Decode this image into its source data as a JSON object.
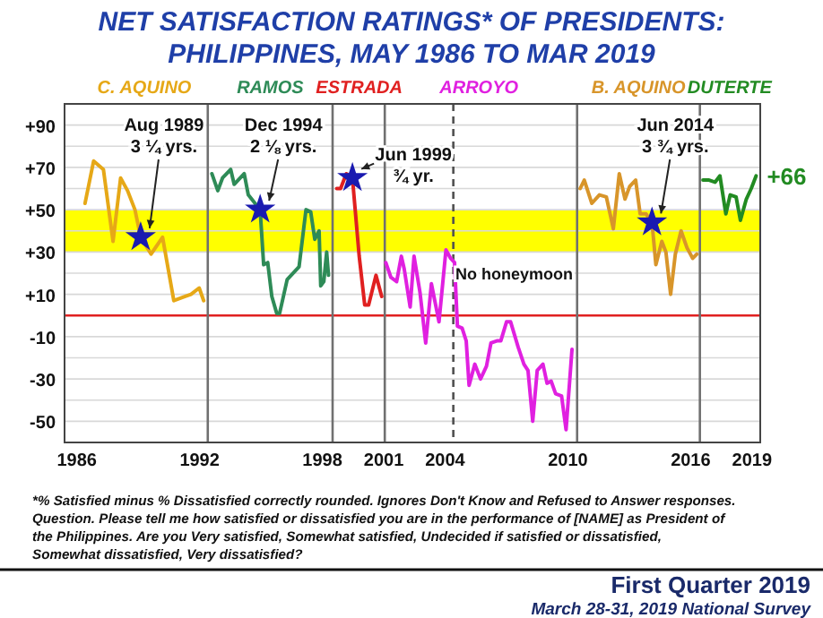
{
  "chart_data": {
    "type": "line",
    "title": "NET SATISFACTION RATINGS* OF PRESIDENTS:",
    "subtitle": "PHILIPPINES, MAY 1986 TO MAR 2019",
    "xlim": [
      1985.4,
      2019.4
    ],
    "xticks": [
      1986,
      1992,
      1998,
      2001,
      2004,
      2010,
      2016,
      2019
    ],
    "ylim": [
      -60,
      100
    ],
    "yticks": [
      {
        "value": 90,
        "label": "+90"
      },
      {
        "value": 80,
        "label": null
      },
      {
        "value": 70,
        "label": "+70"
      },
      {
        "value": 60,
        "label": null
      },
      {
        "value": 50,
        "label": "+50"
      },
      {
        "value": 40,
        "label": null
      },
      {
        "value": 30,
        "label": "+30"
      },
      {
        "value": 20,
        "label": null
      },
      {
        "value": 10,
        "label": "+10"
      },
      {
        "value": 0,
        "label": null
      },
      {
        "value": -10,
        "label": "-10"
      },
      {
        "value": -20,
        "label": null
      },
      {
        "value": -30,
        "label": "-30"
      },
      {
        "value": -40,
        "label": null
      },
      {
        "value": -50,
        "label": "-50"
      }
    ],
    "grid": "y",
    "bands": [
      {
        "axis": "y",
        "from": 30,
        "to": 50,
        "color": "#ffff00"
      }
    ],
    "ref_lines": [
      {
        "axis": "y",
        "value": 0,
        "color": "#e02020"
      },
      {
        "axis": "x",
        "value": 1992.4,
        "color": "#707070"
      },
      {
        "axis": "x",
        "value": 1998.5,
        "color": "#707070"
      },
      {
        "axis": "x",
        "value": 2001.05,
        "color": "#707070"
      },
      {
        "axis": "x",
        "value": 2004.4,
        "color": "#505050",
        "line_style": "dashed"
      },
      {
        "axis": "x",
        "value": 2010.45,
        "color": "#707070"
      },
      {
        "axis": "x",
        "value": 2016.45,
        "color": "#707070"
      }
    ],
    "series": [
      {
        "name": "C. AQUINO",
        "color": "#e6a817",
        "x": [
          1986.4,
          1986.82,
          1987.3,
          1987.77,
          1988.14,
          1988.48,
          1988.84,
          1989.12,
          1989.63,
          1990.19,
          1990.74,
          1991.3,
          1991.58,
          1991.98,
          1992.2
        ],
        "values": [
          53,
          73,
          69,
          35,
          65,
          59,
          50,
          37,
          29,
          37,
          7,
          9,
          10,
          13,
          7
        ]
      },
      {
        "name": "RAMOS",
        "color": "#2e8b57",
        "x": [
          1992.6,
          1992.89,
          1993.12,
          1993.52,
          1993.69,
          1994.18,
          1994.38,
          1994.96,
          1995.13,
          1995.33,
          1995.53,
          1995.77,
          1995.91,
          1996.28,
          1996.86,
          1997.2,
          1997.43,
          1997.63,
          1997.84,
          1997.92,
          1998.07,
          1998.21,
          1998.3
        ],
        "values": [
          67,
          59,
          65,
          69,
          62,
          67,
          57,
          50,
          24,
          25,
          9,
          1,
          1,
          17,
          23,
          50,
          49,
          36,
          40,
          14,
          16,
          30,
          19
        ]
      },
      {
        "name": "ESTRADA",
        "color": "#e02020",
        "x": [
          1998.7,
          1998.89,
          1999.17,
          1999.47,
          1999.8,
          2000.07,
          2000.26,
          2000.62,
          2000.9
        ],
        "values": [
          60,
          60,
          67,
          65,
          28,
          5,
          5,
          19,
          9
        ]
      },
      {
        "name": "ARROYO",
        "color": "#e020e0",
        "x": [
          2001.1,
          2001.35,
          2001.63,
          2001.86,
          2002.0,
          2002.29,
          2002.48,
          2002.77,
          2003.05,
          2003.33,
          2003.7,
          2004.04,
          2004.27,
          2004.46,
          2004.6,
          2004.83,
          2005.03,
          2005.17,
          2005.45,
          2005.73,
          2006.02,
          2006.24,
          2006.53,
          2006.72,
          2007.0,
          2007.2,
          2007.57,
          2007.85,
          2008.05,
          2008.28,
          2008.5,
          2008.78,
          2008.98,
          2009.18,
          2009.4,
          2009.69,
          2009.91,
          2010.2
        ],
        "values": [
          25,
          18,
          16,
          28,
          22,
          4,
          28,
          11,
          -13,
          15,
          -3,
          31,
          27,
          25,
          -5,
          -6,
          -12,
          -33,
          -23,
          -30,
          -24,
          -13,
          -12,
          -12,
          -3,
          -3,
          -15,
          -23,
          -26,
          -50,
          -26,
          -23,
          -32,
          -31,
          -37,
          -38,
          -54,
          -16
        ]
      },
      {
        "name": "B. AQUINO",
        "color": "#d8952a",
        "x": [
          2010.6,
          2010.8,
          2011.17,
          2011.54,
          2011.88,
          2012.22,
          2012.51,
          2012.79,
          2013.02,
          2013.31,
          2013.53,
          2013.82,
          2014.11,
          2014.3,
          2014.59,
          2014.79,
          2015.02,
          2015.25,
          2015.53,
          2015.82,
          2016.1,
          2016.3
        ],
        "values": [
          60,
          64,
          53,
          57,
          56,
          41,
          67,
          55,
          61,
          64,
          48,
          48,
          44,
          24,
          35,
          30,
          10,
          29,
          40,
          32,
          27,
          29
        ]
      },
      {
        "name": "DUTERTE",
        "color": "#228b22",
        "x": [
          2016.6,
          2016.9,
          2017.19,
          2017.43,
          2017.72,
          2017.93,
          2018.22,
          2018.43,
          2018.72,
          2018.96,
          2019.2
        ],
        "values": [
          64,
          64,
          63,
          66,
          48,
          57,
          56,
          45,
          55,
          60,
          66
        ],
        "value_labels": [
          null,
          null,
          null,
          null,
          null,
          null,
          null,
          null,
          null,
          null,
          "+66"
        ]
      },
      {
        "type": "scatter",
        "marker": "star",
        "color": "#1a1ab0",
        "x": [
          1989.12,
          1994.96,
          1999.47,
          2014.11
        ],
        "values": [
          37,
          50,
          65,
          44
        ]
      }
    ],
    "annotations": [
      {
        "text": "Aug 1989\n3 ¼ yrs.",
        "x": 1989.12,
        "y": 37
      },
      {
        "text": "Dec 1994\n2 ⅛ yrs.",
        "x": 1994.96,
        "y": 50
      },
      {
        "text": "Jun 1999\n¾ yr.",
        "x": 1999.47,
        "y": 65
      },
      {
        "text": "Jun 2014\n3 ¾ yrs.",
        "x": 2014.11,
        "y": 44
      },
      {
        "text": "No honeymoon",
        "x": 2004.5,
        "y": 17
      },
      "*% Satisfied minus % Dissatisfied correctly rounded. Ignores Don't Know and Refused to Answer responses.",
      "Question. Please tell me how satisfied or dissatisfied you are in the performance of [NAME] as President of",
      "the Philippines. Are you Very satisfied, Somewhat satisfied, Undecided if satisfied or dissatisfied,",
      "Somewhat dissatisfied, Very dissatisfied?",
      "First Quarter 2019",
      "March 28-31, 2019 National Survey"
    ]
  }
}
